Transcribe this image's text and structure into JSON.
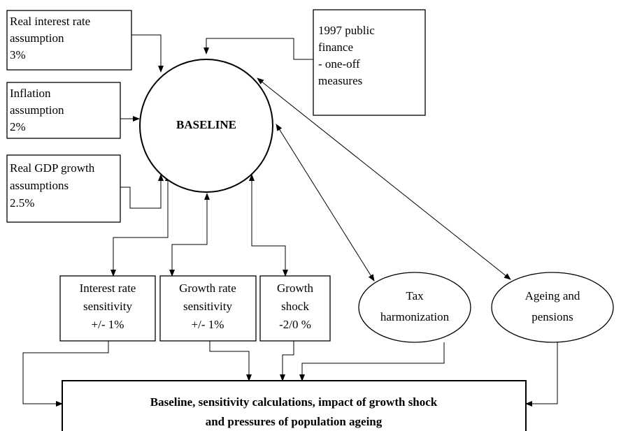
{
  "nodes": [
    {
      "lines": [
        "Real interest rate",
        "assumption",
        "3%"
      ]
    },
    {
      "lines": [
        "Inflation",
        "assumption",
        "2%"
      ]
    },
    {
      "lines": [
        "Real GDP growth",
        "assumptions",
        "2.5%"
      ]
    },
    {
      "lines": [
        "1997 public",
        "finance",
        "- one-off",
        "measures"
      ]
    },
    {
      "lines": [
        "BASELINE"
      ]
    },
    {
      "lines": [
        "Interest rate",
        "sensitivity",
        "+/- 1%"
      ]
    },
    {
      "lines": [
        "Growth rate",
        "sensitivity",
        "+/- 1%"
      ]
    },
    {
      "lines": [
        "Growth",
        "shock",
        "-2/0 %"
      ]
    },
    {
      "lines": [
        "Tax",
        "harmonization"
      ]
    },
    {
      "lines": [
        "Ageing and",
        "pensions"
      ]
    },
    {
      "lines": [
        "Baseline, sensitivity calculations, impact of growth shock",
        "and pressures of population ageing"
      ]
    }
  ]
}
